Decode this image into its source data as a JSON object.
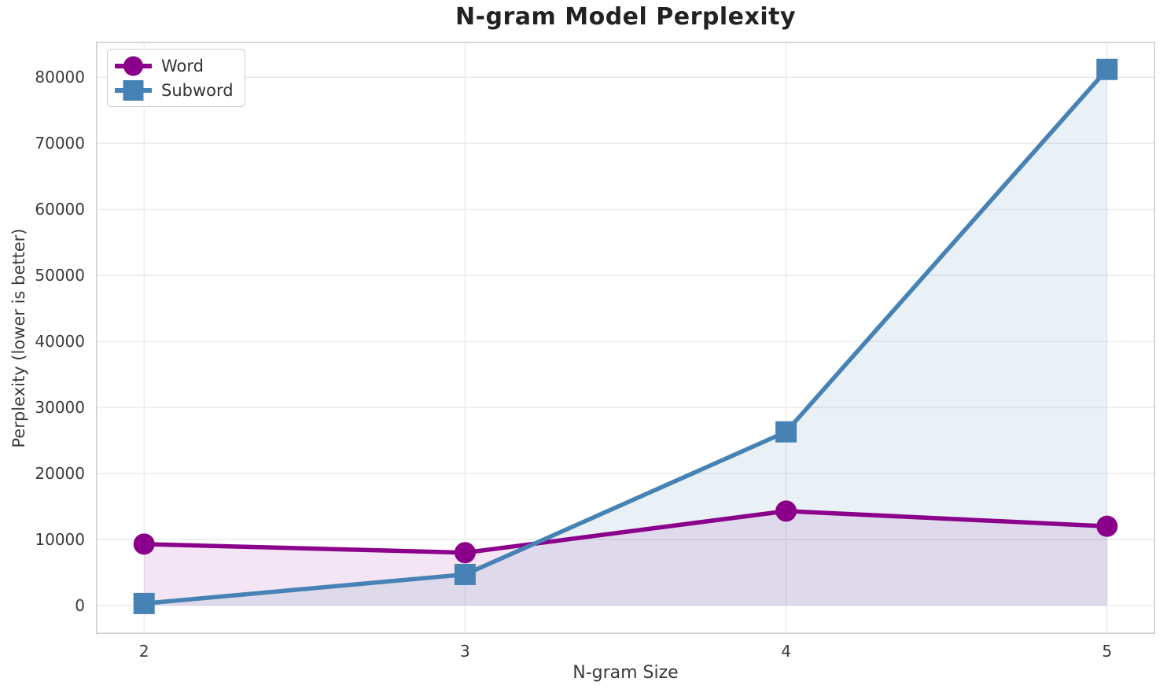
{
  "chart_data": {
    "type": "line",
    "title": "N-gram Model Perplexity",
    "xlabel": "N-gram Size",
    "ylabel": "Perplexity (lower is better)",
    "x": [
      2,
      3,
      4,
      5
    ],
    "series": [
      {
        "name": "Word",
        "values": [
          9300,
          8000,
          14300,
          12000
        ],
        "color": "#8B008B",
        "marker": "circle",
        "fill_alpha": 0.1
      },
      {
        "name": "Subword",
        "values": [
          300,
          4700,
          26300,
          81200
        ],
        "color": "#4682B4",
        "marker": "square",
        "fill_alpha": 0.12
      }
    ],
    "xticks": [
      2,
      3,
      4,
      5
    ],
    "yticks": [
      0,
      10000,
      20000,
      30000,
      40000,
      50000,
      60000,
      70000,
      80000
    ],
    "xlim": [
      1.85,
      5.15
    ],
    "ylim": [
      -4300,
      85400
    ],
    "grid": true,
    "area_fill_to": 0,
    "legend_position": "upper left",
    "line_width": 5.5,
    "marker_size": 27
  },
  "style": {
    "grid_color": "#e9e9e9",
    "spine_color": "#cccccc",
    "text_color": "#3a3a3a",
    "title_color": "#222222",
    "background": "#ffffff"
  }
}
